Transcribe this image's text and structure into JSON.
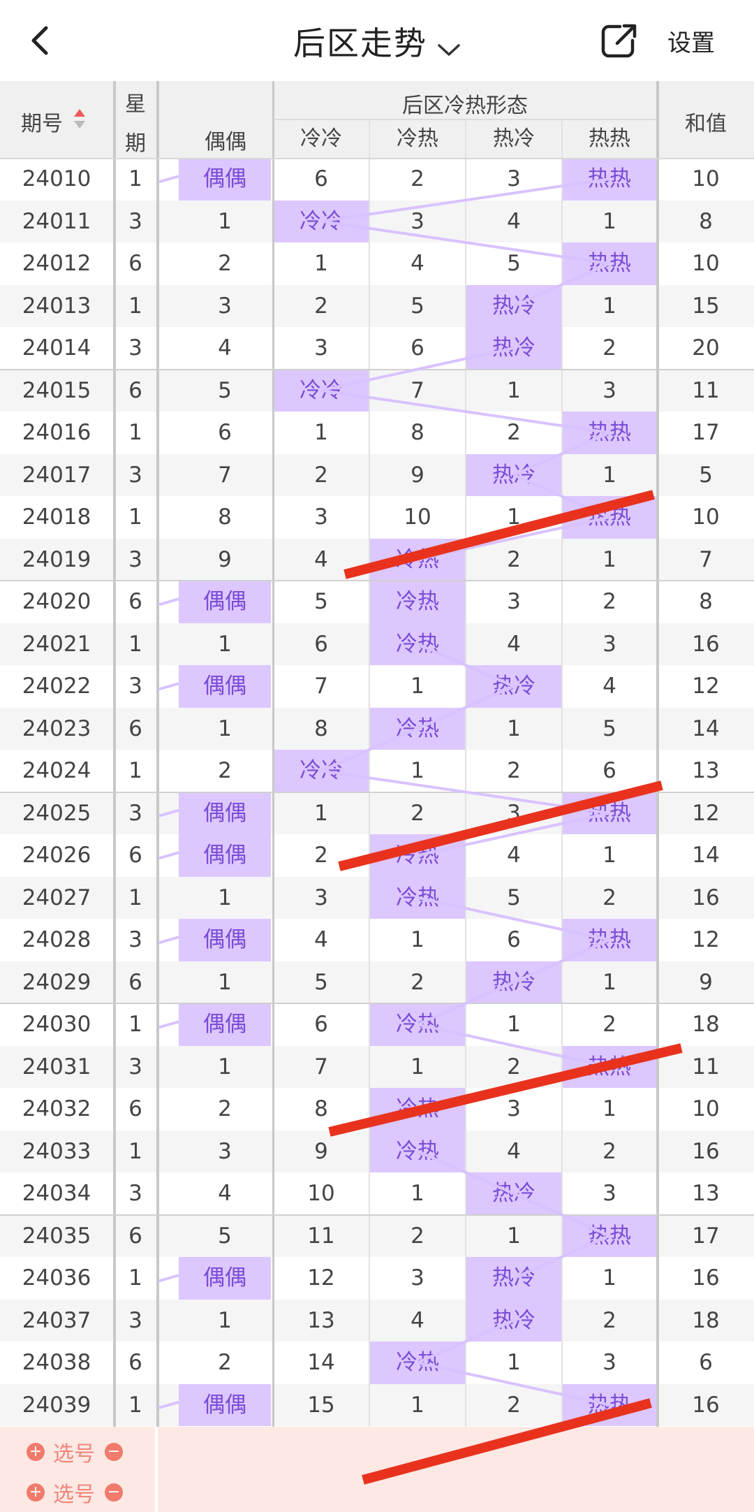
{
  "header": {
    "title": "后区走势",
    "settings": "设置"
  },
  "table": {
    "col_issue": "期号",
    "col_week_top": "星",
    "col_week_bottom": "期",
    "group_label": "后区冷热形态",
    "col_parity": "偶偶",
    "col_cc": "冷冷",
    "col_ch": "冷热",
    "col_hc": "热冷",
    "col_hh": "热热",
    "col_sum": "和值",
    "rows": [
      {
        "issue": "24010",
        "week": "1",
        "parity": "偶偶",
        "cc": "6",
        "ch": "2",
        "hc": "3",
        "hh": "热热",
        "sum": "10",
        "hl": [
          "parity",
          "hh"
        ]
      },
      {
        "issue": "24011",
        "week": "3",
        "parity": "1",
        "cc": "冷冷",
        "ch": "3",
        "hc": "4",
        "hh": "1",
        "sum": "8",
        "hl": [
          "cc"
        ]
      },
      {
        "issue": "24012",
        "week": "6",
        "parity": "2",
        "cc": "1",
        "ch": "4",
        "hc": "5",
        "hh": "热热",
        "sum": "10",
        "hl": [
          "hh"
        ]
      },
      {
        "issue": "24013",
        "week": "1",
        "parity": "3",
        "cc": "2",
        "ch": "5",
        "hc": "热冷",
        "hh": "1",
        "sum": "15",
        "hl": [
          "hc"
        ]
      },
      {
        "issue": "24014",
        "week": "3",
        "parity": "4",
        "cc": "3",
        "ch": "6",
        "hc": "热冷",
        "hh": "2",
        "sum": "20",
        "hl": [
          "hc"
        ]
      },
      {
        "issue": "24015",
        "week": "6",
        "parity": "5",
        "cc": "冷冷",
        "ch": "7",
        "hc": "1",
        "hh": "3",
        "sum": "11",
        "hl": [
          "cc"
        ]
      },
      {
        "issue": "24016",
        "week": "1",
        "parity": "6",
        "cc": "1",
        "ch": "8",
        "hc": "2",
        "hh": "热热",
        "sum": "17",
        "hl": [
          "hh"
        ]
      },
      {
        "issue": "24017",
        "week": "3",
        "parity": "7",
        "cc": "2",
        "ch": "9",
        "hc": "热冷",
        "hh": "1",
        "sum": "5",
        "hl": [
          "hc"
        ]
      },
      {
        "issue": "24018",
        "week": "1",
        "parity": "8",
        "cc": "3",
        "ch": "10",
        "hc": "1",
        "hh": "热热",
        "sum": "10",
        "hl": [
          "hh"
        ]
      },
      {
        "issue": "24019",
        "week": "3",
        "parity": "9",
        "cc": "4",
        "ch": "冷热",
        "hc": "2",
        "hh": "1",
        "sum": "7",
        "hl": [
          "ch"
        ]
      },
      {
        "issue": "24020",
        "week": "6",
        "parity": "偶偶",
        "cc": "5",
        "ch": "冷热",
        "hc": "3",
        "hh": "2",
        "sum": "8",
        "hl": [
          "parity",
          "ch"
        ]
      },
      {
        "issue": "24021",
        "week": "1",
        "parity": "1",
        "cc": "6",
        "ch": "冷热",
        "hc": "4",
        "hh": "3",
        "sum": "16",
        "hl": [
          "ch"
        ]
      },
      {
        "issue": "24022",
        "week": "3",
        "parity": "偶偶",
        "cc": "7",
        "ch": "1",
        "hc": "热冷",
        "hh": "4",
        "sum": "12",
        "hl": [
          "parity",
          "hc"
        ]
      },
      {
        "issue": "24023",
        "week": "6",
        "parity": "1",
        "cc": "8",
        "ch": "冷热",
        "hc": "1",
        "hh": "5",
        "sum": "14",
        "hl": [
          "ch"
        ]
      },
      {
        "issue": "24024",
        "week": "1",
        "parity": "2",
        "cc": "冷冷",
        "ch": "1",
        "hc": "2",
        "hh": "6",
        "sum": "13",
        "hl": [
          "cc"
        ]
      },
      {
        "issue": "24025",
        "week": "3",
        "parity": "偶偶",
        "cc": "1",
        "ch": "2",
        "hc": "3",
        "hh": "热热",
        "sum": "12",
        "hl": [
          "parity",
          "hh"
        ]
      },
      {
        "issue": "24026",
        "week": "6",
        "parity": "偶偶",
        "cc": "2",
        "ch": "冷热",
        "hc": "4",
        "hh": "1",
        "sum": "14",
        "hl": [
          "parity",
          "ch"
        ]
      },
      {
        "issue": "24027",
        "week": "1",
        "parity": "1",
        "cc": "3",
        "ch": "冷热",
        "hc": "5",
        "hh": "2",
        "sum": "16",
        "hl": [
          "ch"
        ]
      },
      {
        "issue": "24028",
        "week": "3",
        "parity": "偶偶",
        "cc": "4",
        "ch": "1",
        "hc": "6",
        "hh": "热热",
        "sum": "12",
        "hl": [
          "parity",
          "hh"
        ]
      },
      {
        "issue": "24029",
        "week": "6",
        "parity": "1",
        "cc": "5",
        "ch": "2",
        "hc": "热冷",
        "hh": "1",
        "sum": "9",
        "hl": [
          "hc"
        ]
      },
      {
        "issue": "24030",
        "week": "1",
        "parity": "偶偶",
        "cc": "6",
        "ch": "冷热",
        "hc": "1",
        "hh": "2",
        "sum": "18",
        "hl": [
          "parity",
          "ch"
        ]
      },
      {
        "issue": "24031",
        "week": "3",
        "parity": "1",
        "cc": "7",
        "ch": "1",
        "hc": "2",
        "hh": "热热",
        "sum": "11",
        "hl": [
          "hh"
        ]
      },
      {
        "issue": "24032",
        "week": "6",
        "parity": "2",
        "cc": "8",
        "ch": "冷热",
        "hc": "3",
        "hh": "1",
        "sum": "10",
        "hl": [
          "ch"
        ]
      },
      {
        "issue": "24033",
        "week": "1",
        "parity": "3",
        "cc": "9",
        "ch": "冷热",
        "hc": "4",
        "hh": "2",
        "sum": "16",
        "hl": [
          "ch"
        ]
      },
      {
        "issue": "24034",
        "week": "3",
        "parity": "4",
        "cc": "10",
        "ch": "1",
        "hc": "热冷",
        "hh": "3",
        "sum": "13",
        "hl": [
          "hc"
        ]
      },
      {
        "issue": "24035",
        "week": "6",
        "parity": "5",
        "cc": "11",
        "ch": "2",
        "hc": "1",
        "hh": "热热",
        "sum": "17",
        "hl": [
          "hh"
        ]
      },
      {
        "issue": "24036",
        "week": "1",
        "parity": "偶偶",
        "cc": "12",
        "ch": "3",
        "hc": "热冷",
        "hh": "1",
        "sum": "16",
        "hl": [
          "parity",
          "hc"
        ]
      },
      {
        "issue": "24037",
        "week": "3",
        "parity": "1",
        "cc": "13",
        "ch": "4",
        "hc": "热冷",
        "hh": "2",
        "sum": "18",
        "hl": [
          "hc"
        ]
      },
      {
        "issue": "24038",
        "week": "6",
        "parity": "2",
        "cc": "14",
        "ch": "冷热",
        "hc": "1",
        "hh": "3",
        "sum": "6",
        "hl": [
          "ch"
        ]
      },
      {
        "issue": "24039",
        "week": "1",
        "parity": "偶偶",
        "cc": "15",
        "ch": "1",
        "hc": "2",
        "hh": "热热",
        "sum": "16",
        "hl": [
          "parity",
          "hh"
        ]
      }
    ]
  },
  "footer": {
    "select_label_1": "选号",
    "select_label_2": "选号"
  },
  "colors": {
    "highlight_bg": "#dcc7ff",
    "highlight_text": "#7a4bd6",
    "trend_line": "#d8c2ff",
    "red_marker": "#e8321e",
    "footer_bg": "#fde8e4",
    "sort_up": "#f05a5a"
  }
}
